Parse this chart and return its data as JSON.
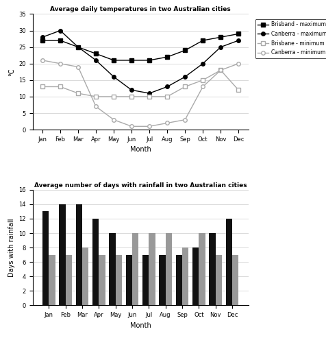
{
  "months": [
    "Jan",
    "Feb",
    "Mar",
    "Apr",
    "May",
    "Jun",
    "Jul",
    "Aug",
    "Sep",
    "Oct",
    "Nov",
    "Dec"
  ],
  "brisbane_max": [
    27,
    27,
    25,
    23,
    21,
    21,
    21,
    22,
    24,
    27,
    28,
    29
  ],
  "canberra_max": [
    28,
    30,
    25,
    21,
    16,
    12,
    11,
    13,
    16,
    20,
    25,
    27
  ],
  "brisbane_min": [
    13,
    13,
    11,
    10,
    10,
    10,
    10,
    10,
    13,
    15,
    18,
    12
  ],
  "canberra_min": [
    21,
    20,
    19,
    7,
    3,
    1,
    1,
    2,
    3,
    13,
    18,
    20
  ],
  "brisbane_rain": [
    13,
    14,
    14,
    12,
    10,
    7,
    7,
    7,
    7,
    8,
    10,
    12
  ],
  "canberra_rain": [
    7,
    7,
    8,
    7,
    7,
    10,
    10,
    10,
    8,
    10,
    7,
    7
  ],
  "line_title": "Average daily temperatures in two Australian cities",
  "bar_title": "Average number of days with rainfall in two Australian cities",
  "line_ylabel": "°C",
  "bar_ylabel": "Days with rainfall",
  "xlabel": "Month",
  "brisbane_bar_color": "#111111",
  "canberra_bar_color": "#999999",
  "ylim_line": [
    0,
    35
  ],
  "ylim_bar": [
    0,
    16
  ],
  "line_yticks": [
    0,
    5,
    10,
    15,
    20,
    25,
    30,
    35
  ],
  "bar_yticks": [
    0,
    2,
    4,
    6,
    8,
    10,
    12,
    14,
    16
  ]
}
